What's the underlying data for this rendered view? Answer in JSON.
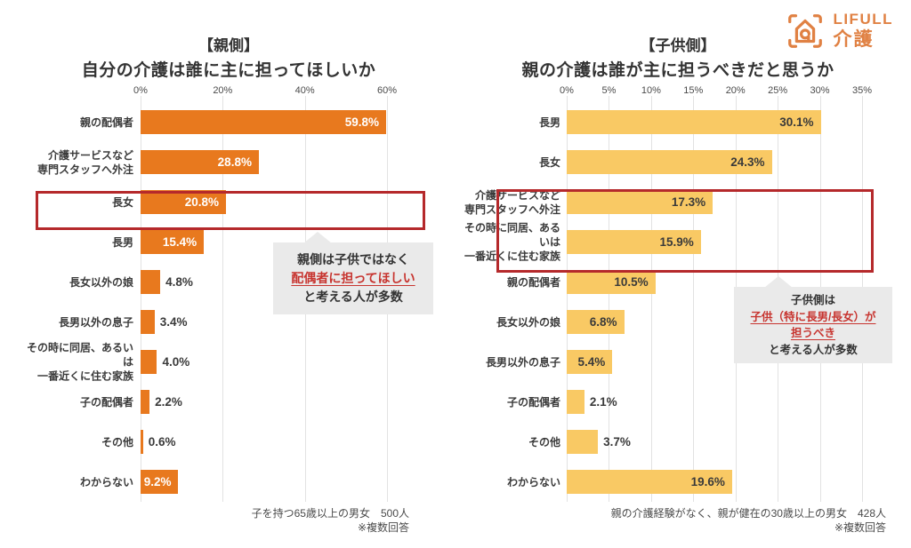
{
  "logo": {
    "brand": "LIFULL",
    "service": "介護"
  },
  "accent_colors": {
    "bar_orange": "#E8791E",
    "bar_yellow": "#F9C964",
    "highlight_red": "#B5292B",
    "accent_text_red": "#C7342F"
  },
  "chart_data": [
    {
      "type": "bar",
      "orientation": "horizontal",
      "group_label": "【親側】",
      "title": "自分の介護は誰に主に担ってほしいか",
      "categories": [
        "親の配偶者",
        "介護サービスなど\n専門スタッフへ外注",
        "長女",
        "長男",
        "長女以外の娘",
        "長男以外の息子",
        "その時に同居、あるいは\n一番近くに住む家族",
        "子の配偶者",
        "その他",
        "わからない"
      ],
      "values": [
        59.8,
        28.8,
        20.8,
        15.4,
        4.8,
        3.4,
        4.0,
        2.2,
        0.6,
        9.2
      ],
      "value_labels": [
        "59.8%",
        "28.8%",
        "20.8%",
        "15.4%",
        "4.8%",
        "3.4%",
        "4.0%",
        "2.2%",
        "0.6%",
        "9.2%"
      ],
      "xlim": [
        0,
        60
      ],
      "tick_values": [
        0,
        20,
        40,
        60
      ],
      "tick_labels": [
        "0%",
        "20%",
        "40%",
        "60%"
      ],
      "bar_color": "#E8791E",
      "value_label_color_inside": "#FFFFFF",
      "value_label_color_outside": "#3A3A3A",
      "highlighted_categories": [
        "親の配偶者"
      ],
      "annotation_lines": [
        {
          "text": "親側は子供ではなく",
          "accent": false
        },
        {
          "text": "配偶者に担ってほしい",
          "accent": true
        },
        {
          "text": "と考える人が多数",
          "accent": false
        }
      ],
      "sample_note": "子を持つ65歳以上の男女　500人",
      "method_note": "※複数回答"
    },
    {
      "type": "bar",
      "orientation": "horizontal",
      "group_label": "【子供側】",
      "title": "親の介護は誰が主に担うべきだと思うか",
      "categories": [
        "長男",
        "長女",
        "介護サービスなど\n専門スタッフへ外注",
        "その時に同居、あるいは\n一番近くに住む家族",
        "親の配偶者",
        "長女以外の娘",
        "長男以外の息子",
        "子の配偶者",
        "その他",
        "わからない"
      ],
      "values": [
        30.1,
        24.3,
        17.3,
        15.9,
        10.5,
        6.8,
        5.4,
        2.1,
        3.7,
        19.6
      ],
      "value_labels": [
        "30.1%",
        "24.3%",
        "17.3%",
        "15.9%",
        "10.5%",
        "6.8%",
        "5.4%",
        "2.1%",
        "3.7%",
        "19.6%"
      ],
      "xlim": [
        0,
        35
      ],
      "tick_values": [
        0,
        5,
        10,
        15,
        20,
        25,
        30,
        35
      ],
      "tick_labels": [
        "0%",
        "5%",
        "10%",
        "15%",
        "20%",
        "25%",
        "30%",
        "35%"
      ],
      "bar_color": "#F9C964",
      "value_label_color_inside": "#3A3A3A",
      "value_label_color_outside": "#3A3A3A",
      "highlighted_categories": [
        "長男",
        "長女"
      ],
      "annotation_lines": [
        {
          "text": "子供側は",
          "accent": false
        },
        {
          "text": "子供（特に長男/長女）が",
          "accent": true
        },
        {
          "text": "担うべき",
          "accent": true
        },
        {
          "text": "と考える人が多数",
          "accent": false
        }
      ],
      "sample_note": "親の介護経験がなく、親が健在の30歳以上の男女　428人",
      "method_note": "※複数回答"
    }
  ]
}
